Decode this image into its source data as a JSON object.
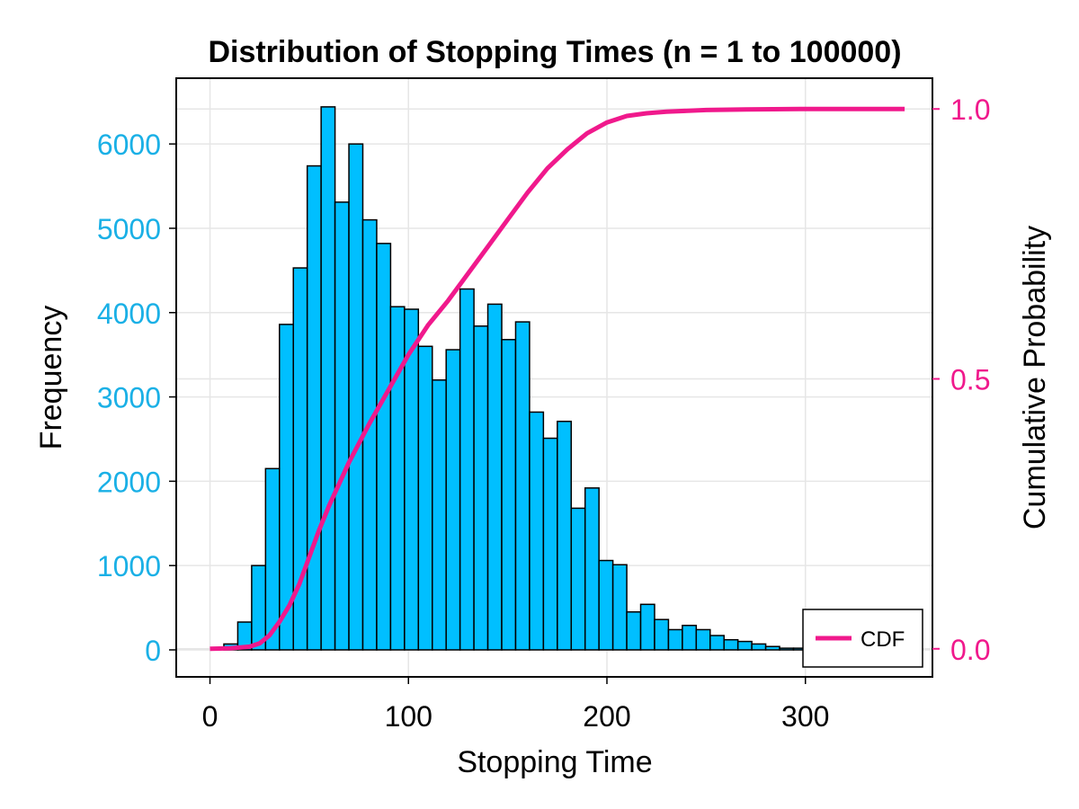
{
  "chart_data": {
    "type": "bar",
    "title": "Distribution of Stopping Times (n = 1 to 100000)",
    "xlabel": "Stopping Time",
    "ylabel_left": "Frequency",
    "ylabel_right": "Cumulative Probability",
    "xlim": [
      -17,
      364
    ],
    "ylim_left": [
      -320,
      6780
    ],
    "ylim_right": [
      -0.052,
      1.057
    ],
    "x_ticks": [
      0,
      100,
      200,
      300
    ],
    "x_tick_labels": [
      "0",
      "100",
      "200",
      "300"
    ],
    "y_left_ticks": [
      0,
      1000,
      2000,
      3000,
      4000,
      5000,
      6000
    ],
    "y_left_tick_labels": [
      "0",
      "1000",
      "2000",
      "3000",
      "4000",
      "5000",
      "6000"
    ],
    "y_right_ticks": [
      0.0,
      0.5,
      1.0
    ],
    "y_right_tick_labels": [
      "0.0",
      "0.5",
      "1.0"
    ],
    "grid": true,
    "histogram": {
      "name": "Frequency",
      "color": "#00BFFF",
      "bin_start": 0,
      "bin_width": 7,
      "values": [
        0,
        70,
        330,
        1000,
        2150,
        3860,
        4530,
        5740,
        6440,
        5310,
        6000,
        5100,
        4820,
        4070,
        4040,
        3600,
        3200,
        3560,
        4280,
        3840,
        4100,
        3680,
        3890,
        2820,
        2510,
        2710,
        1680,
        1920,
        1060,
        1010,
        450,
        540,
        360,
        240,
        290,
        240,
        170,
        120,
        100,
        70,
        40,
        20,
        20,
        10,
        5,
        5,
        3,
        2,
        2,
        1
      ]
    },
    "cdf": {
      "name": "CDF",
      "color": "#F0198C",
      "x": [
        0,
        10,
        20,
        25,
        30,
        35,
        40,
        45,
        50,
        55,
        60,
        65,
        70,
        80,
        90,
        100,
        110,
        120,
        130,
        140,
        150,
        160,
        170,
        180,
        190,
        200,
        210,
        220,
        230,
        250,
        270,
        300,
        350
      ],
      "y": [
        0.0,
        0.001,
        0.004,
        0.01,
        0.025,
        0.05,
        0.08,
        0.12,
        0.17,
        0.22,
        0.265,
        0.305,
        0.345,
        0.415,
        0.48,
        0.545,
        0.6,
        0.645,
        0.695,
        0.745,
        0.795,
        0.845,
        0.89,
        0.925,
        0.955,
        0.975,
        0.987,
        0.992,
        0.995,
        0.998,
        0.999,
        1.0,
        1.0
      ]
    },
    "legend": {
      "position": "bottom-right",
      "entries": [
        {
          "label": "CDF",
          "color": "#F0198C"
        }
      ]
    },
    "colors": {
      "left_axis": "#1AB0E6",
      "right_axis": "#F0198C",
      "frame": "#000000",
      "grid": "#E6E6E6"
    }
  }
}
